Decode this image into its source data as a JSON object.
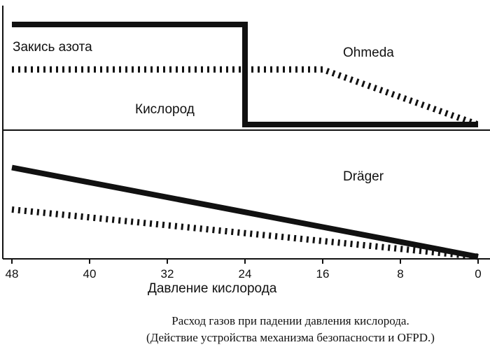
{
  "chart_data": {
    "type": "line",
    "x_ticks": [
      48,
      40,
      32,
      24,
      16,
      8,
      0
    ],
    "xlabel": "Давление кислорода",
    "caption": [
      "Расход газов при падении давления кислорода.",
      "(Действие устройства механизма безопасности и OFPD.)"
    ],
    "panels": [
      {
        "title": "Ohmeda",
        "series": [
          {
            "name": "Закись азота",
            "style": "solid",
            "points": [
              [
                48,
                1.0
              ],
              [
                24,
                1.0
              ],
              [
                24,
                0.0
              ],
              [
                0,
                0.0
              ]
            ]
          },
          {
            "name": "Кислород",
            "style": "dotted",
            "points": [
              [
                48,
                0.55
              ],
              [
                16,
                0.55
              ],
              [
                0,
                0.0
              ]
            ]
          }
        ]
      },
      {
        "title": "Dräger",
        "series": [
          {
            "name": "",
            "style": "solid",
            "points": [
              [
                48,
                0.85
              ],
              [
                0,
                0.0
              ]
            ]
          },
          {
            "name": "",
            "style": "dotted",
            "points": [
              [
                48,
                0.45
              ],
              [
                0,
                0.0
              ]
            ]
          }
        ]
      }
    ]
  },
  "colors": {
    "ink": "#111111",
    "background": "#ffffff"
  }
}
